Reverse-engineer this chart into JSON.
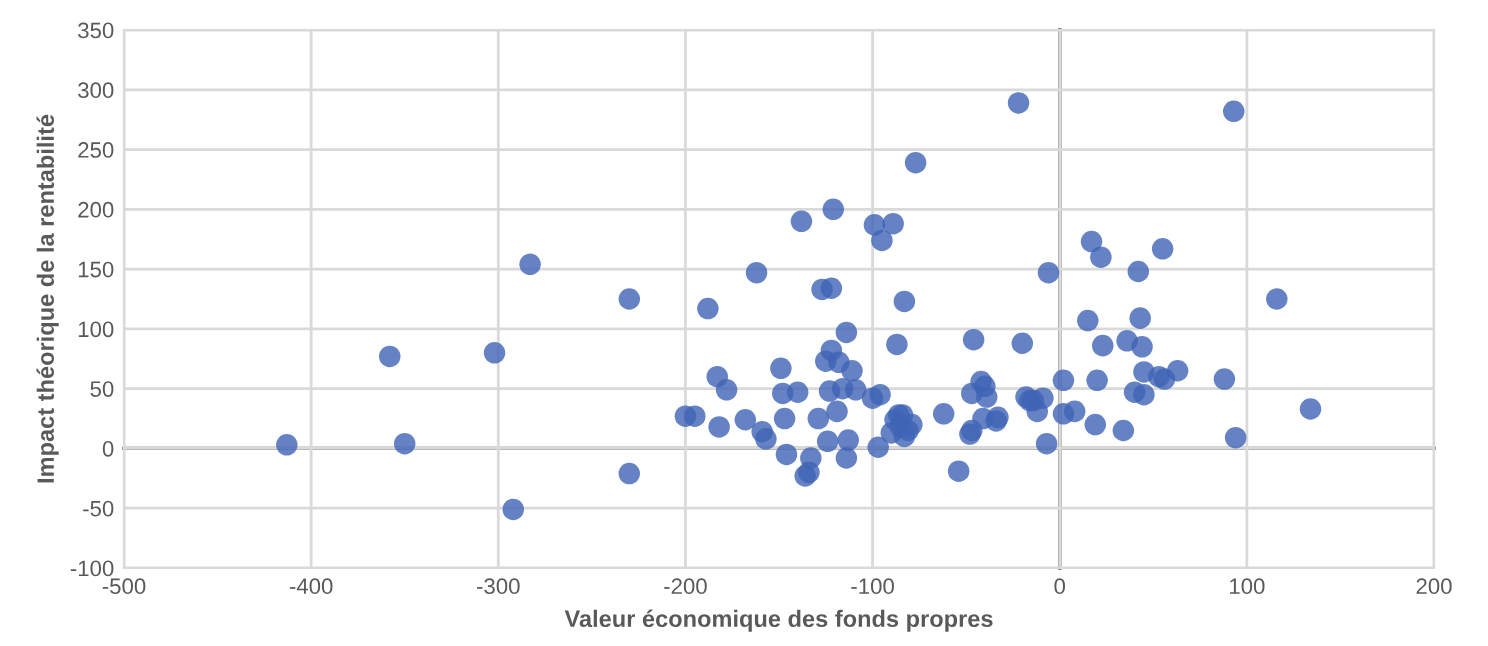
{
  "chart_data": {
    "type": "scatter",
    "xlabel": "Valeur économique des fonds propres",
    "ylabel": "Impact théorique de la rentabilité",
    "xlim": [
      -500,
      200
    ],
    "xticks": [
      -500,
      -400,
      -300,
      -200,
      -100,
      0,
      100,
      200
    ],
    "ylim": [
      -100,
      350
    ],
    "yticks": [
      -100,
      -50,
      0,
      50,
      100,
      150,
      200,
      250,
      300,
      350
    ],
    "grid": true,
    "marker": "circle",
    "series": [
      {
        "color": "#3f63b5",
        "x": [
          -413,
          -358,
          -350,
          -302,
          -292,
          -283,
          -230,
          -230,
          -200,
          -195,
          -188,
          -183,
          -182,
          -178,
          -168,
          -162,
          -159,
          -157,
          -149,
          -148,
          -147,
          -146,
          -140,
          -138,
          -136,
          -134,
          -133,
          -129,
          -127,
          -125,
          -124,
          -123,
          -122,
          -122,
          -121,
          -119,
          -118,
          -116,
          -114,
          -114,
          -113,
          -111,
          -109,
          -100,
          -99,
          -97,
          -96,
          -95,
          -90,
          -89,
          -88,
          -87,
          -86,
          -85,
          -84,
          -83,
          -83,
          -81,
          -79,
          -77,
          -62,
          -54,
          -48,
          -47,
          -47,
          -46,
          -42,
          -41,
          -40,
          -39,
          -34,
          -33,
          -22,
          -20,
          -18,
          -16,
          -14,
          -12,
          -9,
          -7,
          -6,
          2,
          2,
          8,
          15,
          17,
          19,
          20,
          22,
          23,
          34,
          36,
          40,
          42,
          43,
          44,
          45,
          45,
          53,
          55,
          56,
          63,
          88,
          93,
          94,
          116,
          134
        ],
        "values": [
          3,
          77,
          4,
          80,
          -51,
          154,
          125,
          -21,
          27,
          27,
          117,
          60,
          18,
          49,
          24,
          147,
          14,
          8,
          67,
          46,
          25,
          -5,
          47,
          190,
          -23,
          -20,
          -8,
          25,
          133,
          73,
          6,
          48,
          82,
          134,
          200,
          31,
          72,
          50,
          -8,
          97,
          7,
          65,
          49,
          42,
          187,
          1,
          45,
          174,
          13,
          188,
          24,
          87,
          28,
          18,
          28,
          10,
          123,
          15,
          20,
          239,
          29,
          -19,
          12,
          15,
          46,
          91,
          56,
          25,
          52,
          43,
          23,
          26,
          289,
          88,
          43,
          40,
          40,
          31,
          42,
          4,
          147,
          57,
          29,
          31,
          107,
          173,
          20,
          57,
          160,
          86,
          15,
          90,
          47,
          148,
          109,
          85,
          64,
          45,
          60,
          167,
          58,
          65,
          58,
          282,
          9,
          125,
          33
        ]
      }
    ]
  }
}
